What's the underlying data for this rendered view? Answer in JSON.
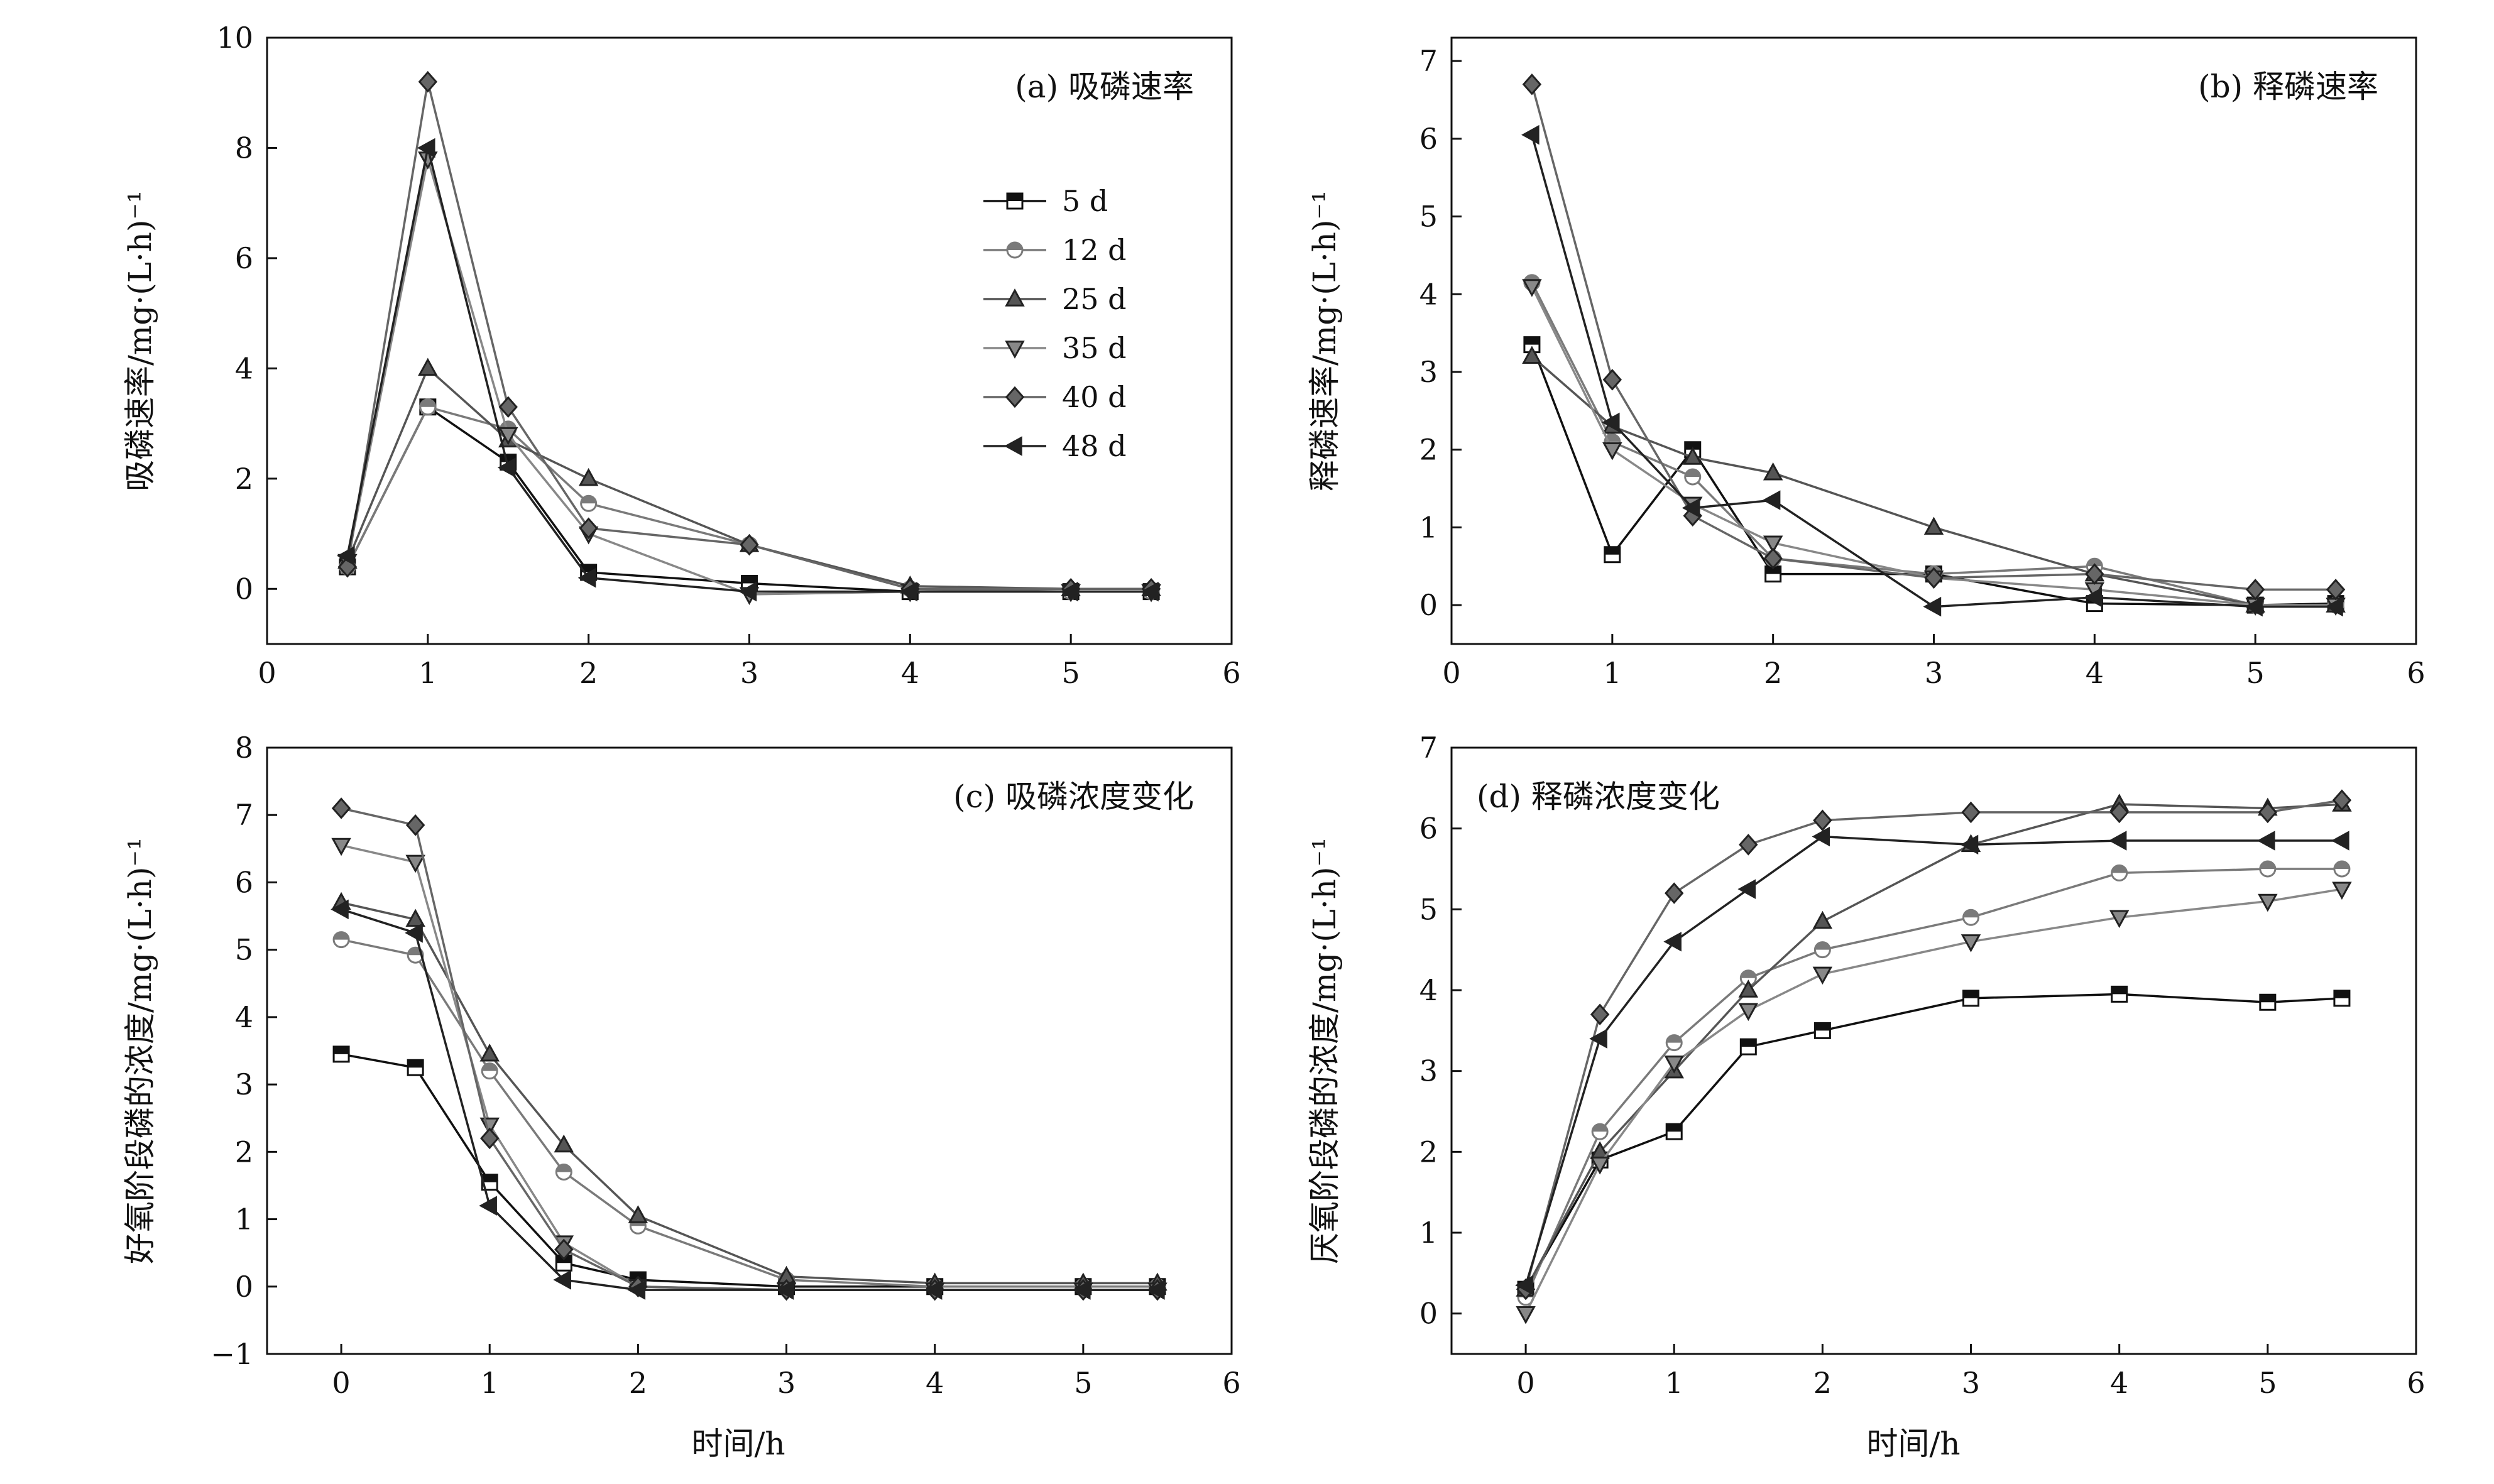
{
  "figure": {
    "xlabel_bottom": "时间/h"
  },
  "chart_data": [
    {
      "type": "line",
      "title": "(a) 吸磷速率",
      "xlabel": "",
      "ylabel": "吸磷速率/mg·(L·h)⁻¹",
      "xlim": [
        0,
        6
      ],
      "ylim": [
        -1,
        10
      ],
      "xticks": [
        0,
        1,
        2,
        3,
        4,
        5,
        6
      ],
      "yticks": [
        0,
        2,
        4,
        6,
        8,
        10
      ],
      "grid": false,
      "legend": "upper-right",
      "x": [
        0.5,
        1,
        1.5,
        2,
        3,
        4,
        5,
        5.5
      ],
      "series": [
        {
          "name": "5 d",
          "marker": "square",
          "color": "#111111",
          "values": [
            0.4,
            3.3,
            2.3,
            0.3,
            0.1,
            -0.05,
            -0.05,
            -0.05
          ]
        },
        {
          "name": "12 d",
          "marker": "circle",
          "color": "#7a7a7a",
          "values": [
            0.4,
            3.3,
            2.9,
            1.55,
            0.8,
            0.0,
            -0.05,
            -0.05
          ]
        },
        {
          "name": "25 d",
          "marker": "triangle-up",
          "color": "#555555",
          "values": [
            0.5,
            4.0,
            2.7,
            2.0,
            0.8,
            0.05,
            0.0,
            0.0
          ]
        },
        {
          "name": "35 d",
          "marker": "triangle-down",
          "color": "#888888",
          "values": [
            0.5,
            7.8,
            2.8,
            1.0,
            -0.1,
            -0.05,
            -0.05,
            -0.05
          ]
        },
        {
          "name": "40 d",
          "marker": "diamond",
          "color": "#666666",
          "values": [
            0.4,
            9.2,
            3.3,
            1.1,
            0.8,
            0.0,
            0.0,
            0.0
          ]
        },
        {
          "name": "48 d",
          "marker": "triangle-left",
          "color": "#222222",
          "values": [
            0.6,
            8.0,
            2.2,
            0.2,
            -0.05,
            -0.05,
            -0.05,
            -0.05
          ]
        }
      ]
    },
    {
      "type": "line",
      "title": "(b) 释磷速率",
      "xlabel": "",
      "ylabel": "释磷速率/mg·(L·h)⁻¹",
      "xlim": [
        0,
        6
      ],
      "ylim": [
        -0.5,
        7.3
      ],
      "xticks": [
        0,
        1,
        2,
        3,
        4,
        5,
        6
      ],
      "yticks": [
        0,
        1,
        2,
        3,
        4,
        5,
        6,
        7
      ],
      "grid": false,
      "legend": "none",
      "x": [
        0.5,
        1,
        1.5,
        2,
        3,
        4,
        5,
        5.5
      ],
      "series": [
        {
          "name": "5 d",
          "marker": "square",
          "color": "#111111",
          "values": [
            3.35,
            0.65,
            2.0,
            0.4,
            0.4,
            0.02,
            0.0,
            0.02
          ]
        },
        {
          "name": "12 d",
          "marker": "circle",
          "color": "#7a7a7a",
          "values": [
            4.15,
            2.1,
            1.65,
            0.6,
            0.4,
            0.5,
            0.0,
            0.0
          ]
        },
        {
          "name": "25 d",
          "marker": "triangle-up",
          "color": "#555555",
          "values": [
            3.2,
            2.3,
            1.9,
            1.7,
            1.0,
            0.4,
            0.0,
            0.0
          ]
        },
        {
          "name": "35 d",
          "marker": "triangle-down",
          "color": "#888888",
          "values": [
            4.1,
            2.0,
            1.3,
            0.8,
            0.35,
            0.2,
            0.0,
            0.0
          ]
        },
        {
          "name": "40 d",
          "marker": "diamond",
          "color": "#666666",
          "values": [
            6.7,
            2.9,
            1.15,
            0.6,
            0.35,
            0.4,
            0.2,
            0.2
          ]
        },
        {
          "name": "48 d",
          "marker": "triangle-left",
          "color": "#222222",
          "values": [
            6.05,
            2.35,
            1.25,
            1.35,
            -0.02,
            0.1,
            -0.02,
            -0.02
          ]
        }
      ]
    },
    {
      "type": "line",
      "title": "(c) 吸磷浓度变化",
      "xlabel": "时间/h",
      "ylabel": "好氧阶段磷的浓度/mg·(L·h)⁻¹",
      "xlim": [
        -0.5,
        6
      ],
      "ylim": [
        -1,
        8
      ],
      "xticks": [
        0,
        1,
        2,
        3,
        4,
        5,
        6
      ],
      "yticks": [
        -1,
        0,
        1,
        2,
        3,
        4,
        5,
        6,
        7,
        8
      ],
      "grid": false,
      "legend": "none",
      "x": [
        0,
        0.5,
        1,
        1.5,
        2,
        3,
        4,
        5,
        5.5
      ],
      "series": [
        {
          "name": "5 d",
          "marker": "square",
          "color": "#111111",
          "values": [
            3.45,
            3.25,
            1.55,
            0.35,
            0.1,
            0.0,
            0.0,
            0.0,
            0.0
          ]
        },
        {
          "name": "12 d",
          "marker": "circle",
          "color": "#7a7a7a",
          "values": [
            5.15,
            4.92,
            3.2,
            1.7,
            0.9,
            0.1,
            0.0,
            0.0,
            0.0
          ]
        },
        {
          "name": "25 d",
          "marker": "triangle-up",
          "color": "#555555",
          "values": [
            5.7,
            5.45,
            3.45,
            2.1,
            1.05,
            0.15,
            0.05,
            0.05,
            0.05
          ]
        },
        {
          "name": "35 d",
          "marker": "triangle-down",
          "color": "#888888",
          "values": [
            6.55,
            6.3,
            2.4,
            0.65,
            0.0,
            -0.05,
            -0.05,
            -0.05,
            -0.05
          ]
        },
        {
          "name": "40 d",
          "marker": "diamond",
          "color": "#666666",
          "values": [
            7.1,
            6.85,
            2.2,
            0.55,
            0.0,
            -0.05,
            -0.05,
            -0.05,
            -0.05
          ]
        },
        {
          "name": "48 d",
          "marker": "triangle-left",
          "color": "#222222",
          "values": [
            5.6,
            5.25,
            1.2,
            0.1,
            -0.05,
            -0.05,
            -0.05,
            -0.05,
            -0.05
          ]
        }
      ]
    },
    {
      "type": "line",
      "title": "(d) 释磷浓度变化",
      "xlabel": "时间/h",
      "ylabel": "厌氧阶段磷的浓度/mg·(L·h)⁻¹",
      "xlim": [
        -0.5,
        6
      ],
      "ylim": [
        -0.5,
        7
      ],
      "xticks": [
        0,
        1,
        2,
        3,
        4,
        5,
        6
      ],
      "yticks": [
        0,
        1,
        2,
        3,
        4,
        5,
        6,
        7
      ],
      "grid": false,
      "legend": "none",
      "x": [
        0,
        0.5,
        1,
        1.5,
        2,
        3,
        4,
        5,
        5.5
      ],
      "series": [
        {
          "name": "5 d",
          "marker": "square",
          "color": "#111111",
          "values": [
            0.3,
            1.9,
            2.25,
            3.3,
            3.5,
            3.9,
            3.95,
            3.85,
            3.9
          ]
        },
        {
          "name": "12 d",
          "marker": "circle",
          "color": "#7a7a7a",
          "values": [
            0.2,
            2.25,
            3.35,
            4.15,
            4.5,
            4.9,
            5.45,
            5.5,
            5.5
          ]
        },
        {
          "name": "25 d",
          "marker": "triangle-up",
          "color": "#555555",
          "values": [
            0.3,
            2.0,
            3.0,
            4.0,
            4.85,
            5.8,
            6.3,
            6.25,
            6.3
          ]
        },
        {
          "name": "35 d",
          "marker": "triangle-down",
          "color": "#888888",
          "values": [
            0.0,
            1.85,
            3.1,
            3.75,
            4.2,
            4.6,
            4.9,
            5.1,
            5.25
          ]
        },
        {
          "name": "40 d",
          "marker": "diamond",
          "color": "#666666",
          "values": [
            0.3,
            3.7,
            5.2,
            5.8,
            6.1,
            6.2,
            6.2,
            6.2,
            6.35
          ]
        },
        {
          "name": "48 d",
          "marker": "triangle-left",
          "color": "#222222",
          "values": [
            0.35,
            3.4,
            4.6,
            5.25,
            5.9,
            5.8,
            5.85,
            5.85,
            5.85
          ]
        }
      ]
    }
  ]
}
